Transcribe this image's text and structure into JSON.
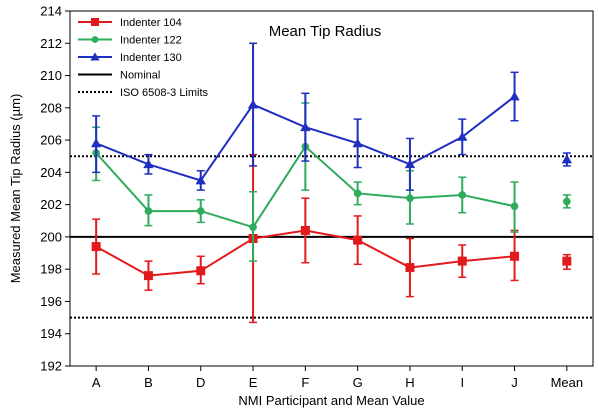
{
  "chart_data": {
    "type": "line",
    "title": "Mean Tip Radius",
    "xlabel": "NMI Participant and Mean Value",
    "ylabel": "Measured Mean Tip Radius (µm)",
    "categories": [
      "A",
      "B",
      "D",
      "E",
      "F",
      "G",
      "H",
      "I",
      "J",
      "Mean"
    ],
    "ylim": [
      192,
      214
    ],
    "yticks": [
      192,
      194,
      196,
      198,
      200,
      202,
      204,
      206,
      208,
      210,
      212,
      214
    ],
    "grid": false,
    "legend_position": "top-left",
    "series": [
      {
        "name": "Indenter 104",
        "color": "#e31a1c",
        "marker": "square",
        "values": [
          199.4,
          197.6,
          197.9,
          199.9,
          200.4,
          199.8,
          198.1,
          198.5,
          198.8,
          198.5
        ],
        "err_low": [
          197.7,
          196.7,
          197.1,
          194.7,
          198.4,
          198.3,
          196.3,
          197.5,
          197.3,
          198.0
        ],
        "err_high": [
          201.1,
          198.5,
          198.8,
          205.1,
          202.4,
          201.3,
          199.9,
          199.5,
          200.4,
          198.9
        ]
      },
      {
        "name": "Indenter 122",
        "color": "#2eab5b",
        "marker": "circle",
        "values": [
          205.2,
          201.6,
          201.6,
          200.6,
          205.6,
          202.7,
          202.4,
          202.6,
          201.9,
          202.2
        ],
        "err_low": [
          203.5,
          200.7,
          200.9,
          198.5,
          202.9,
          202.0,
          200.8,
          201.5,
          200.3,
          201.8
        ],
        "err_high": [
          206.8,
          202.6,
          202.3,
          202.8,
          208.3,
          203.4,
          204.1,
          203.7,
          203.4,
          202.6
        ]
      },
      {
        "name": "Indenter 130",
        "color": "#1f2fbf",
        "marker": "triangle",
        "values": [
          205.8,
          204.5,
          203.5,
          208.2,
          206.8,
          205.8,
          204.5,
          206.2,
          208.7,
          204.8
        ],
        "err_low": [
          204.0,
          203.9,
          202.9,
          204.4,
          204.7,
          204.3,
          202.9,
          205.1,
          207.2,
          204.4
        ],
        "err_high": [
          207.5,
          205.1,
          204.1,
          212.0,
          208.9,
          207.3,
          206.1,
          207.3,
          210.2,
          205.2
        ]
      }
    ],
    "reference_lines": [
      {
        "name": "Nominal",
        "y": 200,
        "style": "solid",
        "color": "#000000"
      },
      {
        "name": "ISO 6508-3 Limits",
        "y": [
          195,
          205
        ],
        "style": "dotted",
        "color": "#000000"
      }
    ]
  }
}
